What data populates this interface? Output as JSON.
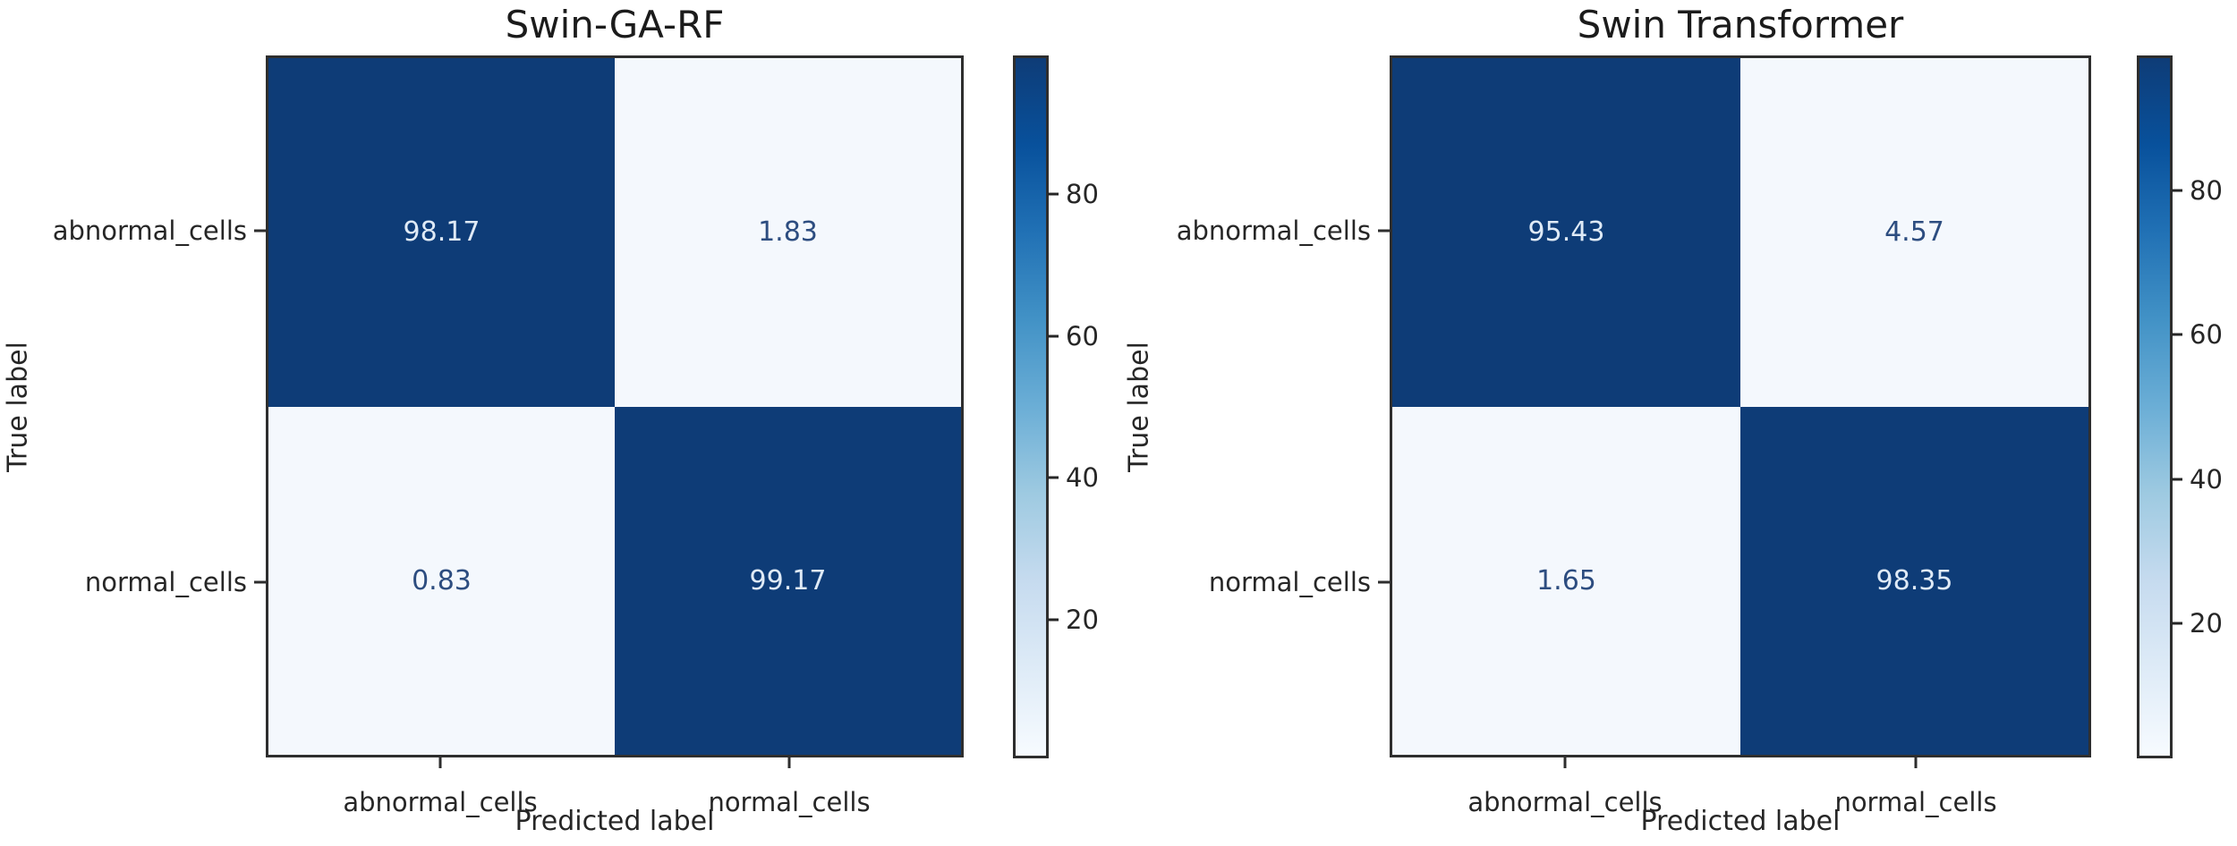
{
  "figure": {
    "background": "#ffffff"
  },
  "chart_data": [
    {
      "type": "heatmap",
      "title": "Swin-GA-RF",
      "xlabel": "Predicted label",
      "ylabel": "True label",
      "classes": [
        "abnormal_cells",
        "normal_cells"
      ],
      "matrix": [
        [
          98.17,
          1.83
        ],
        [
          0.83,
          99.17
        ]
      ],
      "colormap": "Blues",
      "grid": false,
      "colorbar": {
        "position": "right",
        "vmin": 0.83,
        "vmax": 99.17,
        "ticks": [
          80,
          60,
          40,
          20
        ]
      }
    },
    {
      "type": "heatmap",
      "title": "Swin Transformer",
      "xlabel": "Predicted label",
      "ylabel": "True label",
      "classes": [
        "abnormal_cells",
        "normal_cells"
      ],
      "matrix": [
        [
          95.43,
          4.57
        ],
        [
          1.65,
          98.35
        ]
      ],
      "colormap": "Blues",
      "grid": false,
      "colorbar": {
        "position": "right",
        "vmin": 1.65,
        "vmax": 98.35,
        "ticks": [
          80,
          60,
          40,
          20
        ]
      }
    }
  ],
  "colors": {
    "cell_high": "#0e3c77",
    "cell_low": "#f4f8fd",
    "value_on_high": "#dfeaf6",
    "value_on_low": "#2d4d80",
    "axis_text": "#262626",
    "border": "#2e2e2e",
    "title_text": "#1b1b1b",
    "colorbar_gradient": [
      "#0e3c77",
      "#08519c",
      "#2171b5",
      "#4292c6",
      "#6baed6",
      "#9ecae1",
      "#c6dbef",
      "#deebf7",
      "#f7fbff"
    ]
  }
}
